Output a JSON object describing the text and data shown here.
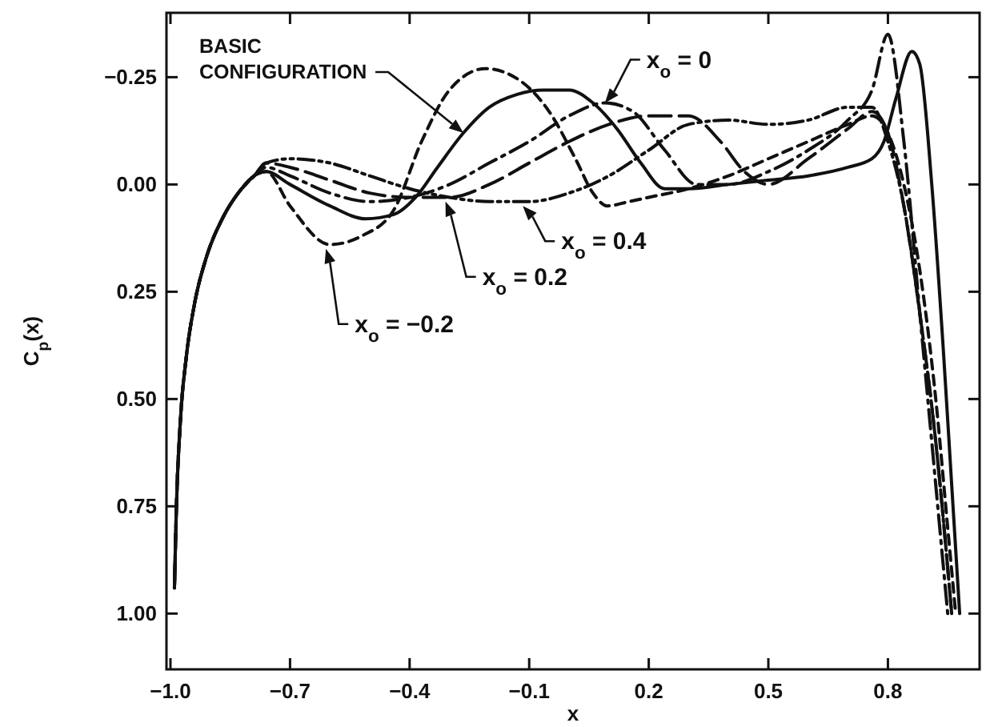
{
  "chart_data": {
    "type": "line",
    "xlabel": "x",
    "ylabel": "C$_{p}$(x)",
    "xlim": [
      -1.01,
      1.03
    ],
    "ylim": [
      1.13,
      -0.4
    ],
    "xticks": [
      {
        "value": -1.0,
        "label": "−1.0"
      },
      {
        "value": -0.7,
        "label": "−0.7"
      },
      {
        "value": -0.4,
        "label": "−0.4"
      },
      {
        "value": -0.1,
        "label": "−0.1"
      },
      {
        "value": 0.2,
        "label": "0.2"
      },
      {
        "value": 0.5,
        "label": "0.5"
      },
      {
        "value": 0.8,
        "label": "0.8"
      }
    ],
    "yticks": [
      {
        "value": -0.25,
        "label": "−0.25"
      },
      {
        "value": 0,
        "label": "0.00"
      },
      {
        "value": 0.25,
        "label": "0.25"
      },
      {
        "value": 0.5,
        "label": "0.50"
      },
      {
        "value": 0.75,
        "label": "0.75"
      },
      {
        "value": 1.0,
        "label": "1.00"
      }
    ],
    "grid": false,
    "marker": "none",
    "series": [
      {
        "color": "#111111",
        "line_style": "solid",
        "x": [
          -0.99,
          -0.985,
          -0.975,
          -0.96,
          -0.94,
          -0.91,
          -0.87,
          -0.83,
          -0.79,
          -0.76,
          -0.7,
          -0.6,
          -0.51,
          -0.44,
          -0.385,
          -0.33,
          -0.265,
          -0.2,
          -0.13,
          -0.064,
          0.0,
          0.06,
          0.12,
          0.18,
          0.24,
          0.3,
          0.4,
          0.5,
          0.6,
          0.7,
          0.76,
          0.79,
          0.82,
          0.86,
          0.88,
          0.91,
          0.94,
          0.96,
          0.98
        ],
        "values": [
          0.94,
          0.75,
          0.55,
          0.4,
          0.28,
          0.17,
          0.08,
          0.02,
          -0.02,
          -0.03,
          0.0,
          0.05,
          0.08,
          0.07,
          0.03,
          -0.04,
          -0.12,
          -0.18,
          -0.21,
          -0.22,
          -0.22,
          -0.19,
          -0.13,
          -0.05,
          0.01,
          0.01,
          0.0,
          -0.01,
          -0.02,
          -0.04,
          -0.06,
          -0.1,
          -0.2,
          -0.31,
          -0.28,
          0.0,
          0.4,
          0.7,
          1.0
        ]
      },
      {
        "color": "#111111",
        "line_style": "dashed",
        "x": [
          -0.99,
          -0.985,
          -0.975,
          -0.96,
          -0.94,
          -0.91,
          -0.87,
          -0.83,
          -0.79,
          -0.76,
          -0.7,
          -0.6,
          -0.52,
          -0.44,
          -0.37,
          -0.3,
          -0.21,
          -0.12,
          -0.05,
          0.016,
          0.06,
          0.096,
          0.15,
          0.2,
          0.3,
          0.4,
          0.5,
          0.6,
          0.7,
          0.76,
          0.8,
          0.84,
          0.88,
          0.92,
          0.95,
          0.97
        ],
        "values": [
          0.94,
          0.75,
          0.55,
          0.4,
          0.28,
          0.17,
          0.08,
          0.02,
          -0.02,
          -0.03,
          0.05,
          0.14,
          0.12,
          0.06,
          -0.1,
          -0.22,
          -0.27,
          -0.24,
          -0.17,
          -0.06,
          0.02,
          0.05,
          0.04,
          0.03,
          0.01,
          -0.02,
          -0.06,
          -0.1,
          -0.14,
          -0.16,
          -0.12,
          0.0,
          0.2,
          0.5,
          0.8,
          1.0
        ]
      },
      {
        "color": "#111111",
        "line_style": "dashdot",
        "x": [
          -0.99,
          -0.985,
          -0.975,
          -0.96,
          -0.94,
          -0.91,
          -0.87,
          -0.83,
          -0.79,
          -0.76,
          -0.7,
          -0.6,
          -0.5,
          -0.4,
          -0.3,
          -0.2,
          -0.1,
          0.0,
          0.09,
          0.16,
          0.24,
          0.32,
          0.4,
          0.5,
          0.6,
          0.7,
          0.76,
          0.8,
          0.84,
          0.88,
          0.92,
          0.95
        ],
        "values": [
          0.94,
          0.75,
          0.55,
          0.4,
          0.28,
          0.17,
          0.08,
          0.02,
          -0.02,
          -0.04,
          -0.02,
          0.02,
          0.04,
          0.03,
          0.0,
          -0.05,
          -0.1,
          -0.16,
          -0.19,
          -0.17,
          -0.08,
          0.0,
          0.0,
          -0.03,
          -0.08,
          -0.15,
          -0.22,
          -0.35,
          -0.1,
          0.3,
          0.7,
          1.0
        ]
      },
      {
        "color": "#111111",
        "line_style": "longdash",
        "x": [
          -0.99,
          -0.985,
          -0.975,
          -0.96,
          -0.94,
          -0.91,
          -0.87,
          -0.83,
          -0.79,
          -0.76,
          -0.7,
          -0.6,
          -0.5,
          -0.4,
          -0.3,
          -0.2,
          -0.1,
          0.0,
          0.1,
          0.2,
          0.3,
          0.38,
          0.44,
          0.5,
          0.6,
          0.7,
          0.76,
          0.8,
          0.84,
          0.88,
          0.92,
          0.96
        ],
        "values": [
          0.94,
          0.75,
          0.55,
          0.4,
          0.28,
          0.17,
          0.08,
          0.02,
          -0.02,
          -0.05,
          -0.04,
          -0.01,
          0.02,
          0.03,
          0.03,
          0.0,
          -0.05,
          -0.1,
          -0.14,
          -0.16,
          -0.16,
          -0.1,
          -0.03,
          0.0,
          -0.06,
          -0.13,
          -0.17,
          -0.12,
          0.05,
          0.3,
          0.6,
          1.0
        ]
      },
      {
        "color": "#111111",
        "line_style": "dashdotdot",
        "x": [
          -0.99,
          -0.985,
          -0.975,
          -0.96,
          -0.94,
          -0.91,
          -0.87,
          -0.83,
          -0.79,
          -0.76,
          -0.7,
          -0.6,
          -0.5,
          -0.4,
          -0.3,
          -0.2,
          -0.1,
          0.0,
          0.1,
          0.2,
          0.3,
          0.4,
          0.5,
          0.6,
          0.7,
          0.76,
          0.8,
          0.84,
          0.88,
          0.92,
          0.96
        ],
        "values": [
          0.94,
          0.75,
          0.55,
          0.4,
          0.28,
          0.17,
          0.08,
          0.02,
          -0.02,
          -0.05,
          -0.06,
          -0.05,
          -0.02,
          0.01,
          0.03,
          0.04,
          0.04,
          0.02,
          -0.02,
          -0.08,
          -0.14,
          -0.15,
          -0.14,
          -0.15,
          -0.18,
          -0.18,
          -0.1,
          0.05,
          0.3,
          0.6,
          1.0
        ]
      }
    ],
    "annotations": [
      {
        "text": "BASIC CONFIGURATION",
        "x": -0.265,
        "y": -0.12
      },
      {
        "text": "x$_{o}$ = 0",
        "x": 0.09,
        "y": -0.19
      },
      {
        "text": "x$_{o}$ = 0.4",
        "x": -0.116,
        "y": 0.05
      },
      {
        "text": "x$_{o}$ = 0.2",
        "x": -0.31,
        "y": 0.04
      },
      {
        "text": "x$_{o}$ = −0.2",
        "x": -0.61,
        "y": 0.15
      }
    ]
  }
}
